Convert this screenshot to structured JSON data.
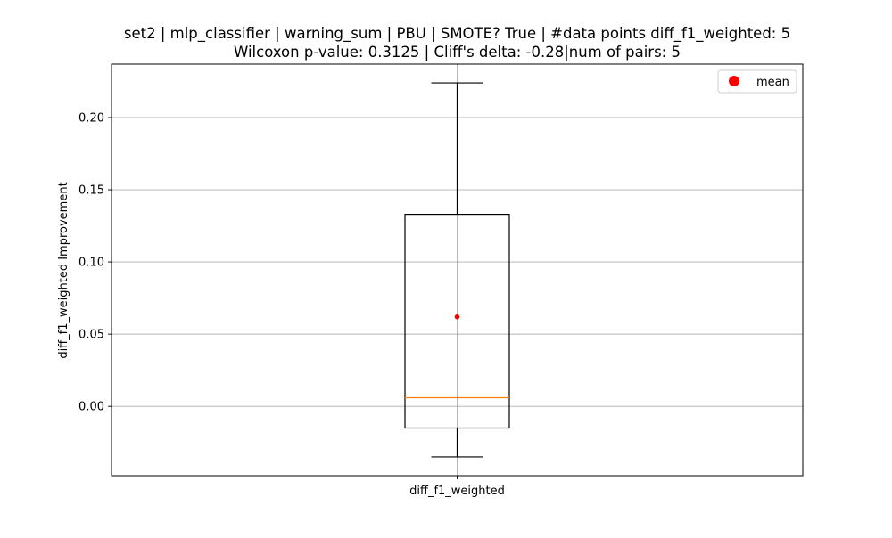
{
  "chart_data": {
    "type": "boxplot",
    "title_line1": "set2 | mlp_classifier | warning_sum | PBU | SMOTE? True | #data points diff_f1_weighted: 5",
    "title_line2": "Wilcoxon p-value: 0.3125 | Cliff's delta: -0.28|num of pairs: 5",
    "xlabel": "",
    "ylabel": "diff_f1_weighted Improvement",
    "categories": [
      "diff_f1_weighted"
    ],
    "ylim": [
      -0.048,
      0.237
    ],
    "yticks": [
      0.0,
      0.05,
      0.1,
      0.15,
      0.2
    ],
    "ytick_labels": [
      "0.00",
      "0.05",
      "0.10",
      "0.15",
      "0.20"
    ],
    "grid": true,
    "legend_position": "top-right",
    "legend": [
      {
        "label": "mean",
        "marker": "circle",
        "color": "#ff0000"
      }
    ],
    "boxes": [
      {
        "category": "diff_f1_weighted",
        "whisker_low": -0.035,
        "q1": -0.015,
        "median": 0.006,
        "q3": 0.133,
        "whisker_high": 0.224,
        "mean": 0.062
      }
    ],
    "colors": {
      "box": "#000000",
      "median": "#ff7f0e",
      "mean": "#ff0000",
      "grid": "#b0b0b0"
    }
  }
}
